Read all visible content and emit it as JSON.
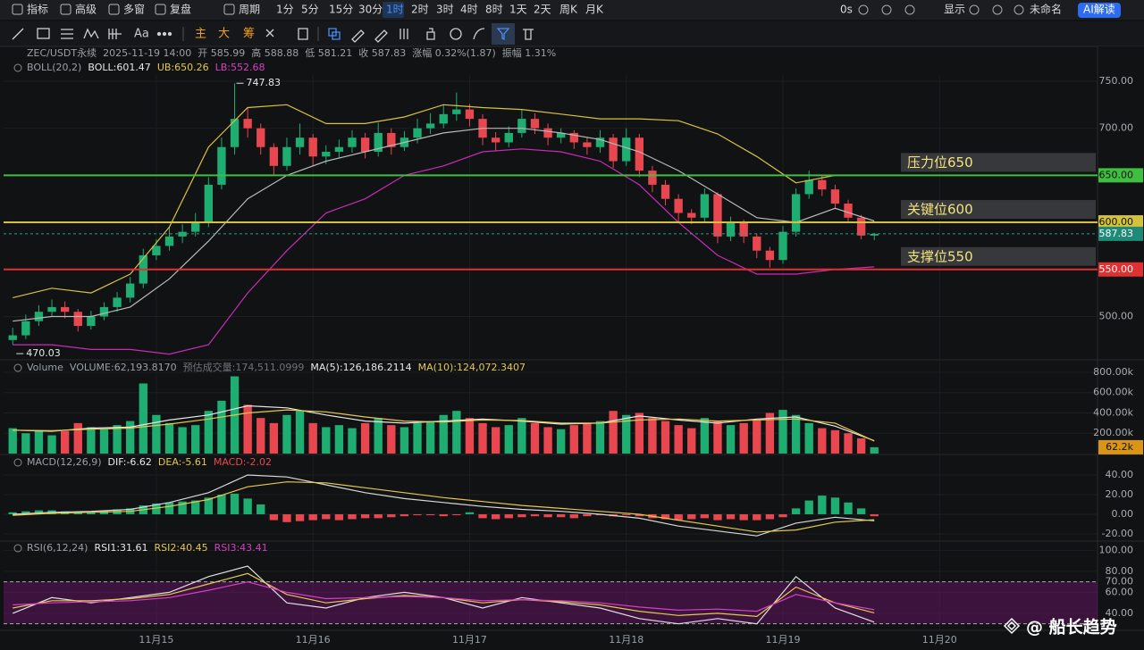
{
  "toolbar": {
    "left": [
      "指标",
      "高级",
      "多窗",
      "复盘",
      "周期",
      "1分",
      "5分",
      "15分",
      "30分",
      "1时",
      "2时",
      "3时",
      "4时",
      "8时",
      "1天",
      "2天",
      "周K",
      "月K"
    ],
    "active_index": 9,
    "right": [
      "0s",
      "显示",
      "未命名",
      "AI解读"
    ]
  },
  "drawing_toolbar": [
    "Aa",
    "主",
    "大",
    "筹"
  ],
  "watermark": "@ 船长趋势",
  "chart_data": [
    {
      "type": "candlestick",
      "info": [
        "ZEC/USDT永续",
        "2025-11-19 14:00",
        "开 585.99",
        "高 588.88",
        "低 581.21",
        "收 587.83",
        "涨幅 0.32%(1.87)",
        "振幅 1.31%"
      ],
      "header": [
        {
          "text": "BOLL(20,2)",
          "color": "#9aa0a6"
        },
        {
          "text": "BOLL:601.47",
          "color": "#e8e8e8"
        },
        {
          "text": "UB:650.26",
          "color": "#e6c84a"
        },
        {
          "text": "LB:552.68",
          "color": "#d63fc6"
        }
      ],
      "colors": {
        "up": "#1fae72",
        "down": "#e8474f"
      },
      "candles": {
        "open": [
          475,
          480,
          495,
          505,
          510,
          505,
          490,
          500,
          510,
          520,
          535,
          565,
          575,
          585,
          590,
          600,
          640,
          680,
          710,
          700,
          680,
          660,
          680,
          690,
          670,
          675,
          680,
          690,
          675,
          695,
          680,
          690,
          700,
          705,
          715,
          720,
          710,
          690,
          685,
          695,
          710,
          700,
          690,
          695,
          685,
          680,
          690,
          665,
          690,
          655,
          640,
          625,
          610,
          605,
          630,
          585,
          600,
          585,
          570,
          560,
          590,
          630,
          645,
          635,
          620,
          605,
          585.99
        ],
        "high": [
          488,
          502,
          512,
          518,
          516,
          508,
          506,
          515,
          526,
          542,
          572,
          582,
          596,
          598,
          610,
          648,
          690,
          747.83,
          722,
          705,
          684,
          690,
          705,
          694,
          682,
          688,
          698,
          695,
          706,
          700,
          697,
          710,
          716,
          725,
          738,
          726,
          715,
          696,
          702,
          720,
          716,
          705,
          700,
          698,
          690,
          698,
          694,
          700,
          694,
          660,
          645,
          630,
          614,
          636,
          632,
          606,
          603,
          588,
          574,
          596,
          636,
          655,
          650,
          640,
          624,
          608,
          588.88
        ],
        "low": [
          470.03,
          476,
          490,
          500,
          498,
          484,
          486,
          496,
          505,
          515,
          530,
          560,
          570,
          578,
          585,
          595,
          635,
          672,
          690,
          672,
          650,
          655,
          672,
          660,
          662,
          668,
          674,
          668,
          670,
          672,
          676,
          684,
          694,
          700,
          708,
          702,
          682,
          676,
          680,
          690,
          694,
          682,
          684,
          678,
          672,
          674,
          658,
          660,
          648,
          632,
          618,
          600,
          598,
          600,
          578,
          580,
          578,
          562,
          552,
          556,
          585,
          625,
          628,
          614,
          600,
          582,
          581.21
        ],
        "close": [
          480,
          495,
          505,
          510,
          505,
          490,
          500,
          510,
          520,
          535,
          565,
          575,
          585,
          590,
          600,
          640,
          680,
          710,
          700,
          680,
          660,
          680,
          690,
          670,
          675,
          680,
          690,
          675,
          695,
          680,
          690,
          700,
          705,
          715,
          720,
          710,
          690,
          685,
          695,
          710,
          700,
          690,
          695,
          685,
          680,
          690,
          665,
          690,
          655,
          640,
          625,
          610,
          605,
          630,
          585,
          600,
          585,
          570,
          560,
          590,
          630,
          645,
          635,
          620,
          605,
          586,
          587.83
        ]
      },
      "line_x": [
        0,
        3,
        6,
        9,
        12,
        15,
        18,
        21,
        24,
        27,
        30,
        33,
        36,
        39,
        42,
        45,
        48,
        51,
        54,
        57,
        60,
        63,
        66
      ],
      "lines": [
        {
          "color": "#b8b8b8",
          "values": [
            495,
            500,
            500,
            510,
            540,
            580,
            625,
            650,
            665,
            675,
            685,
            695,
            700,
            700,
            695,
            688,
            675,
            655,
            630,
            605,
            600,
            615,
            601.47
          ]
        },
        {
          "color": "#d9c23e",
          "values": [
            520,
            530,
            525,
            545,
            595,
            680,
            722,
            725,
            705,
            705,
            712,
            725,
            722,
            720,
            715,
            710,
            710,
            708,
            694,
            670,
            642,
            650,
            650.26
          ]
        },
        {
          "color": "#c92bb8",
          "values": [
            470,
            470,
            465,
            465,
            460,
            470,
            525,
            570,
            610,
            625,
            650,
            660,
            675,
            678,
            675,
            665,
            640,
            600,
            565,
            545,
            545,
            550,
            552.68
          ]
        }
      ],
      "xlim": [
        -0.7,
        83.1
      ],
      "ylim": [
        456.8,
        756.6
      ],
      "xticks": [
        {
          "value": 11,
          "label": "11月15"
        },
        {
          "value": 23,
          "label": "11月16"
        },
        {
          "value": 35,
          "label": "11月17"
        },
        {
          "value": 47,
          "label": "11月18"
        },
        {
          "value": 59,
          "label": "11月19"
        },
        {
          "value": 71,
          "label": "11月20"
        }
      ],
      "yticks": [
        {
          "value": 750,
          "label": "750.00"
        },
        {
          "value": 700,
          "label": "700.00"
        },
        {
          "value": 500,
          "label": "500.00"
        }
      ],
      "levels": [
        {
          "value": 650,
          "label": "650.00",
          "text": "压力位650",
          "color": "#3fbf3f",
          "tag_text_color": "#111111"
        },
        {
          "value": 600,
          "label": "600.00",
          "text": "关键位600",
          "color": "#d4c23a",
          "tag_text_color": "#111111"
        },
        {
          "value": 550,
          "label": "550.00",
          "text": "支撑位550",
          "color": "#e03030",
          "tag_text_color": "#ffffff"
        }
      ],
      "grid": true
    },
    {
      "type": "bar",
      "header": [
        {
          "text": "Volume",
          "color": "#9aa0a6"
        },
        {
          "text": "VOLUME:62,193.8170",
          "color": "#9aa0a6"
        },
        {
          "text": "预估成交量:174,511.0999",
          "color": "#6f7378"
        },
        {
          "text": "MA(5):126,186.2114",
          "color": "#e8e8e8"
        },
        {
          "text": "MA(10):124,072.3407",
          "color": "#e6c84a"
        }
      ],
      "values": [
        250000,
        200000,
        230000,
        180000,
        220000,
        300000,
        260000,
        240000,
        280000,
        320000,
        690000,
        380000,
        300000,
        260000,
        280000,
        420000,
        520000,
        760000,
        480000,
        350000,
        300000,
        380000,
        420000,
        300000,
        260000,
        280000,
        250000,
        300000,
        350000,
        280000,
        260000,
        300000,
        320000,
        380000,
        420000,
        350000,
        300000,
        260000,
        280000,
        350000,
        300000,
        260000,
        240000,
        280000,
        300000,
        320000,
        420000,
        380000,
        400000,
        350000,
        320000,
        280000,
        250000,
        350000,
        320000,
        280000,
        300000,
        330000,
        400000,
        430000,
        380000,
        300000,
        250000,
        230000,
        200000,
        150000,
        62193.817
      ],
      "current_label": "62.2k",
      "line_x": [
        0,
        3,
        6,
        9,
        12,
        15,
        18,
        21,
        24,
        27,
        30,
        33,
        36,
        39,
        42,
        45,
        48,
        51,
        54,
        57,
        60,
        63,
        66
      ],
      "lines": [
        {
          "color": "#e8e8e8",
          "values": [
            230000,
            220000,
            250000,
            260000,
            330000,
            380000,
            470000,
            450000,
            380000,
            320000,
            300000,
            320000,
            340000,
            320000,
            290000,
            300000,
            370000,
            330000,
            300000,
            340000,
            360000,
            270000,
            126186.2114
          ]
        },
        {
          "color": "#e6c84a",
          "values": [
            230000,
            225000,
            240000,
            250000,
            290000,
            340000,
            400000,
            430000,
            410000,
            360000,
            320000,
            310000,
            330000,
            325000,
            300000,
            300000,
            330000,
            340000,
            320000,
            330000,
            340000,
            300000,
            124072.3407
          ]
        }
      ],
      "ylim": [
        0,
        905000
      ],
      "yticks": [
        {
          "value": 200000,
          "label": "200.00k"
        },
        {
          "value": 400000,
          "label": "400.00k"
        },
        {
          "value": 600000,
          "label": "600.00k"
        },
        {
          "value": 800000,
          "label": "800.00k"
        }
      ]
    },
    {
      "type": "macd",
      "header": [
        {
          "text": "MACD(12,26,9)",
          "color": "#9aa0a6"
        },
        {
          "text": "DIF:-6.62",
          "color": "#e8e8e8"
        },
        {
          "text": "DEA:-5.61",
          "color": "#e6c84a"
        },
        {
          "text": "MACD:-2.02",
          "color": "#e8474f"
        }
      ],
      "values": [
        2,
        3,
        4,
        4,
        3,
        2,
        3,
        4,
        5,
        6,
        9,
        11,
        12,
        13,
        14,
        17,
        20,
        21,
        16,
        10,
        -6,
        -8,
        -7,
        -6,
        -5,
        -6,
        -5,
        -4,
        -4,
        -3,
        -2,
        -1,
        -1,
        -2,
        -1,
        2,
        -4,
        -5,
        -4,
        -3,
        -2,
        -3,
        -3,
        -4,
        -2,
        -1,
        -2,
        -1,
        -2,
        -4,
        -5,
        -6,
        -5,
        -4,
        -6,
        -5,
        -6,
        -6,
        -5,
        -3,
        6,
        14,
        19,
        17,
        12,
        6,
        -2.02
      ],
      "colors": {
        "up": "#1fae72",
        "down": "#e8474f"
      },
      "line_x": [
        0,
        3,
        6,
        9,
        12,
        15,
        18,
        21,
        24,
        27,
        30,
        33,
        36,
        39,
        42,
        45,
        48,
        51,
        54,
        57,
        60,
        63,
        66
      ],
      "lines": [
        {
          "color": "#d8d8d8",
          "values": [
            0,
            2,
            3,
            5,
            12,
            22,
            40,
            38,
            30,
            22,
            16,
            12,
            8,
            5,
            3,
            0,
            -4,
            -12,
            -17,
            -22,
            -9,
            -3,
            -6.62
          ]
        },
        {
          "color": "#e6c84a",
          "values": [
            -1,
            1,
            2,
            3,
            8,
            15,
            28,
            33,
            32,
            27,
            22,
            17,
            13,
            9,
            6,
            3,
            0,
            -6,
            -12,
            -18,
            -16,
            -8,
            -5.61
          ]
        }
      ],
      "ylim": [
        -26.4,
        60
      ],
      "yticks": [
        {
          "value": 40,
          "label": "40.00"
        },
        {
          "value": 20,
          "label": "20.00"
        },
        {
          "value": 0,
          "label": "0.00"
        },
        {
          "value": -20,
          "label": "-20.00"
        }
      ]
    },
    {
      "type": "line",
      "header": [
        {
          "text": "RSI(6,12,24)",
          "color": "#9aa0a6"
        },
        {
          "text": "RSI1:31.61",
          "color": "#e8e8e8"
        },
        {
          "text": "RSI2:40.45",
          "color": "#e6c84a"
        },
        {
          "text": "RSI3:43.41",
          "color": "#d63fc6"
        }
      ],
      "band": [
        30,
        70
      ],
      "line_x": [
        0,
        3,
        6,
        9,
        12,
        15,
        18,
        21,
        24,
        27,
        30,
        33,
        36,
        39,
        42,
        45,
        48,
        51,
        54,
        57,
        60,
        63,
        66
      ],
      "lines": [
        {
          "color": "#e0e0e0",
          "values": [
            40,
            55,
            50,
            55,
            60,
            75,
            85,
            50,
            45,
            55,
            60,
            55,
            45,
            55,
            50,
            45,
            35,
            30,
            35,
            30,
            75,
            45,
            31.61
          ]
        },
        {
          "color": "#e6c84a",
          "values": [
            45,
            52,
            52,
            54,
            58,
            68,
            78,
            58,
            50,
            54,
            57,
            55,
            50,
            53,
            51,
            48,
            42,
            38,
            40,
            37,
            65,
            50,
            40.45
          ]
        },
        {
          "color": "#d63fc6",
          "values": [
            48,
            50,
            51,
            52,
            55,
            62,
            70,
            60,
            54,
            55,
            56,
            55,
            52,
            53,
            52,
            50,
            46,
            43,
            44,
            42,
            58,
            50,
            43.41
          ]
        }
      ],
      "ylim": [
        24.6,
        108
      ],
      "yticks": [
        {
          "value": 100,
          "label": "100.00"
        },
        {
          "value": 80,
          "label": "80.00"
        },
        {
          "value": 70,
          "label": "70.00"
        },
        {
          "value": 60,
          "label": "60.00"
        },
        {
          "value": 40,
          "label": "40.00"
        }
      ]
    }
  ]
}
